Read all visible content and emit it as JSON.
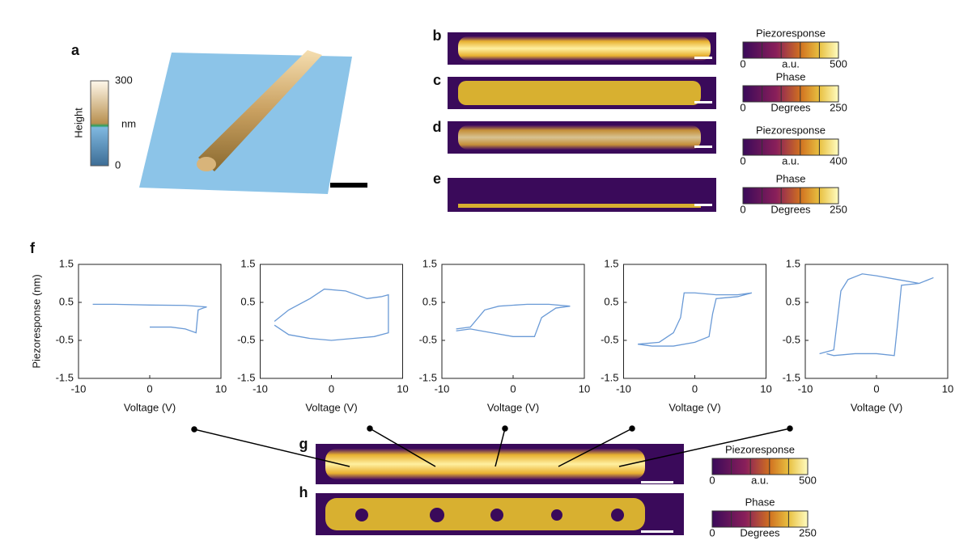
{
  "panel_labels": [
    "a",
    "b",
    "c",
    "d",
    "e",
    "f",
    "g",
    "h"
  ],
  "height_bar": {
    "title": "Height",
    "unit": "nm",
    "ticks": [
      0,
      300
    ]
  },
  "colorbars": [
    {
      "title": "Piezoresponse",
      "unit": "a.u.",
      "ticks": [
        0,
        500
      ]
    },
    {
      "title": "Phase",
      "unit": "Degrees",
      "ticks": [
        0,
        250
      ]
    },
    {
      "title": "Piezoresponse",
      "unit": "a.u.",
      "ticks": [
        0,
        400
      ]
    },
    {
      "title": "Phase",
      "unit": "Degrees",
      "ticks": [
        0,
        250
      ]
    },
    {
      "title": "Piezoresponse",
      "unit": "a.u.",
      "ticks": [
        0,
        500
      ]
    },
    {
      "title": "Phase",
      "unit": "Degrees",
      "ticks": [
        0,
        250
      ]
    }
  ],
  "chart_data": [
    {
      "type": "line",
      "xlabel": "Voltage (V)",
      "ylabel": "Piezoresponse (nm)",
      "color": "#6a9ad6",
      "xlim": [
        -10,
        10
      ],
      "ylim": [
        -1.5,
        1.5
      ],
      "xticks": [
        -10,
        0,
        10
      ],
      "yticks": [
        -1.5,
        -0.5,
        0.5,
        1.5
      ],
      "x": [
        0,
        3,
        5,
        6.5,
        6.8,
        7.5,
        8,
        5,
        0,
        -5,
        -8
      ],
      "values": [
        -0.15,
        -0.15,
        -0.2,
        -0.3,
        0.3,
        0.35,
        0.38,
        0.42,
        0.43,
        0.45,
        0.45
      ]
    },
    {
      "type": "line",
      "xlabel": "Voltage (V)",
      "color": "#6a9ad6",
      "xlim": [
        -10,
        10
      ],
      "ylim": [
        -1.5,
        1.5
      ],
      "xticks": [
        -10,
        0,
        10
      ],
      "yticks": [
        -1.5,
        -0.5,
        0.5,
        1.5
      ],
      "x": [
        -8,
        -6,
        -3,
        -1,
        2,
        5,
        7,
        8,
        8,
        6,
        3,
        0,
        -3,
        -6,
        -8
      ],
      "values": [
        0,
        0.3,
        0.6,
        0.85,
        0.8,
        0.6,
        0.65,
        0.7,
        -0.3,
        -0.4,
        -0.45,
        -0.5,
        -0.45,
        -0.35,
        -0.1
      ]
    },
    {
      "type": "line",
      "xlabel": "Voltage (V)",
      "color": "#6a9ad6",
      "xlim": [
        -10,
        10
      ],
      "ylim": [
        -1.5,
        1.5
      ],
      "xticks": [
        -10,
        0,
        10
      ],
      "yticks": [
        -1.5,
        -0.5,
        0.5,
        1.5
      ],
      "x": [
        -8,
        -6,
        -4,
        -2,
        2,
        5,
        8,
        6,
        4,
        3,
        0,
        -3,
        -6,
        -8
      ],
      "values": [
        -0.2,
        -0.15,
        0.3,
        0.4,
        0.45,
        0.45,
        0.4,
        0.35,
        0.1,
        -0.4,
        -0.4,
        -0.3,
        -0.2,
        -0.25
      ]
    },
    {
      "type": "line",
      "xlabel": "Voltage (V)",
      "color": "#6a9ad6",
      "xlim": [
        -10,
        10
      ],
      "ylim": [
        -1.5,
        1.5
      ],
      "xticks": [
        -10,
        0,
        10
      ],
      "yticks": [
        -1.5,
        -0.5,
        0.5,
        1.5
      ],
      "x": [
        -8,
        -5,
        -3,
        -2,
        -1.5,
        0,
        3,
        6,
        8,
        6,
        3,
        2.5,
        2,
        0,
        -3,
        -6,
        -8
      ],
      "values": [
        -0.6,
        -0.55,
        -0.3,
        0.1,
        0.75,
        0.75,
        0.7,
        0.7,
        0.75,
        0.65,
        0.6,
        0.2,
        -0.4,
        -0.55,
        -0.65,
        -0.65,
        -0.6
      ]
    },
    {
      "type": "line",
      "xlabel": "Voltage (V)",
      "color": "#6a9ad6",
      "xlim": [
        -10,
        10
      ],
      "ylim": [
        -1.5,
        1.5
      ],
      "xticks": [
        -10,
        0,
        10
      ],
      "yticks": [
        -1.5,
        -0.5,
        0.5,
        1.5
      ],
      "x": [
        -8,
        -6,
        -5,
        -4.5,
        -4,
        -2,
        0,
        3,
        6,
        8,
        6,
        3.5,
        3,
        2.5,
        0,
        -3,
        -6,
        -7
      ],
      "values": [
        -0.85,
        -0.75,
        0.8,
        0.95,
        1.1,
        1.25,
        1.2,
        1.1,
        1.0,
        1.15,
        1.0,
        0.95,
        0,
        -0.9,
        -0.85,
        -0.85,
        -0.9,
        -0.85
      ]
    }
  ]
}
